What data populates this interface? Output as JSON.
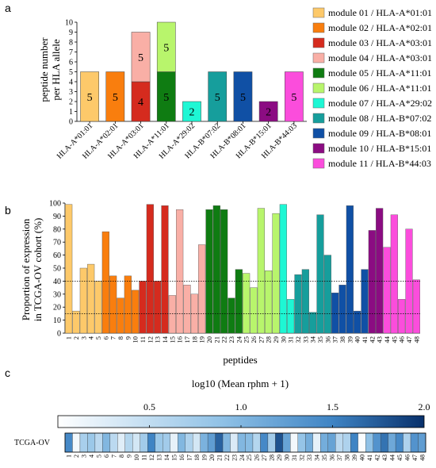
{
  "colors": [
    "#FDC96A",
    "#F97E0E",
    "#D52B1E",
    "#F9AFA6",
    "#0F7C12",
    "#B8F56C",
    "#1EF7D4",
    "#169E9C",
    "#1050A5",
    "#8B0C82",
    "#FB4DDC"
  ],
  "chart_data": [
    {
      "panel": "a",
      "type": "bar",
      "subtype": "stacked",
      "ylabel": "peptide number per HLA allele",
      "ylim": [
        0,
        10
      ],
      "yticks": [
        0,
        1,
        2,
        3,
        4,
        5,
        6,
        7,
        8,
        9,
        10
      ],
      "categories": [
        "HLA-A*01:01",
        "HLA-A*02:01",
        "HLA-A*03:01",
        "HLA-A*11:01",
        "HLA-A*29:02",
        "HLA-B*07:02",
        "HLA-B*08:01",
        "HLA-B*15:01",
        "HLA-B*44:03"
      ],
      "stacks": [
        [
          {
            "module": 1,
            "value": 5
          }
        ],
        [
          {
            "module": 2,
            "value": 5
          }
        ],
        [
          {
            "module": 3,
            "value": 4
          },
          {
            "module": 4,
            "value": 5
          }
        ],
        [
          {
            "module": 5,
            "value": 5
          },
          {
            "module": 6,
            "value": 5
          }
        ],
        [
          {
            "module": 7,
            "value": 2
          }
        ],
        [
          {
            "module": 8,
            "value": 5
          }
        ],
        [
          {
            "module": 9,
            "value": 5
          }
        ],
        [
          {
            "module": 10,
            "value": 2
          }
        ],
        [
          {
            "module": 11,
            "value": 5
          }
        ]
      ],
      "legend_position": "right",
      "legend": [
        "module 01 / HLA-A*01:01",
        "module 02 / HLA-A*02:01",
        "module 03 / HLA-A*03:01",
        "module 04 / HLA-A*03:01",
        "module 05 / HLA-A*11:01",
        "module 06 / HLA-A*11:01",
        "module 07 / HLA-A*29:02",
        "module 08 / HLA-B*07:02",
        "module 09 / HLA-B*08:01",
        "module 10 / HLA-B*15:01",
        "module 11 / HLA-B*44:03"
      ]
    },
    {
      "panel": "b",
      "type": "bar",
      "ylabel_lines": [
        "Proportion of expression",
        "in TCGA-OV cohort (%)"
      ],
      "xlabel": "peptides",
      "ylim": [
        0,
        100
      ],
      "yticks": [
        0,
        10,
        20,
        30,
        40,
        50,
        60,
        70,
        80,
        90,
        100
      ],
      "reference_lines": [
        40,
        15
      ],
      "x": [
        1,
        2,
        3,
        4,
        5,
        6,
        7,
        8,
        9,
        10,
        11,
        12,
        13,
        14,
        15,
        16,
        17,
        18,
        19,
        20,
        21,
        22,
        23,
        24,
        25,
        26,
        27,
        28,
        29,
        30,
        31,
        32,
        33,
        34,
        35,
        36,
        37,
        38,
        39,
        40,
        41,
        42,
        43,
        44,
        45,
        46,
        47,
        48
      ],
      "values": [
        99,
        17,
        50,
        53,
        40,
        78,
        44,
        27,
        44,
        33,
        40,
        99,
        40,
        98,
        29,
        95,
        37,
        30,
        68,
        95,
        98,
        95,
        27,
        49,
        46,
        35,
        96,
        48,
        92,
        99,
        26,
        45,
        49,
        16,
        91,
        60,
        31,
        37,
        98,
        17,
        49,
        79,
        96,
        66,
        91,
        26,
        80,
        41
      ],
      "module_of_peptide": [
        1,
        1,
        1,
        1,
        1,
        2,
        2,
        2,
        2,
        2,
        3,
        3,
        3,
        3,
        4,
        4,
        4,
        4,
        4,
        5,
        5,
        5,
        5,
        5,
        6,
        6,
        6,
        6,
        6,
        7,
        7,
        8,
        8,
        8,
        8,
        8,
        9,
        9,
        9,
        9,
        9,
        10,
        10,
        11,
        11,
        11,
        11,
        11
      ]
    },
    {
      "panel": "c",
      "type": "heatmap",
      "title": "log10 (Mean rphm + 1)",
      "row_label": "TCGA-OV",
      "colorbar_ticks": [
        0.5,
        1.0,
        1.5,
        2.0
      ],
      "colorbar_tick_labels": [
        "0.5",
        "1.0",
        "1.5",
        "2.0"
      ],
      "vmin": 0,
      "vmax": 2,
      "columns": [
        1,
        2,
        3,
        4,
        5,
        6,
        7,
        8,
        9,
        10,
        11,
        12,
        13,
        14,
        15,
        16,
        17,
        18,
        19,
        20,
        21,
        22,
        23,
        24,
        25,
        26,
        27,
        28,
        29,
        30,
        31,
        32,
        33,
        34,
        35,
        36,
        37,
        38,
        39,
        40,
        41,
        42,
        43,
        44,
        45,
        46,
        47,
        48
      ],
      "values": [
        1.45,
        0.1,
        0.7,
        0.8,
        0.55,
        1.0,
        0.55,
        0.25,
        0.6,
        0.35,
        0.75,
        1.5,
        0.8,
        0.75,
        0.2,
        1.0,
        0.65,
        0.35,
        1.05,
        1.25,
        1.7,
        1.0,
        0.3,
        1.0,
        0.95,
        0.6,
        1.45,
        0.75,
        1.8,
        1.2,
        0.1,
        0.85,
        1.1,
        0.2,
        1.1,
        1.2,
        0.55,
        0.65,
        1.5,
        0.05,
        0.9,
        1.35,
        1.6,
        1.15,
        1.45,
        0.65,
        1.35,
        1.25
      ]
    }
  ]
}
